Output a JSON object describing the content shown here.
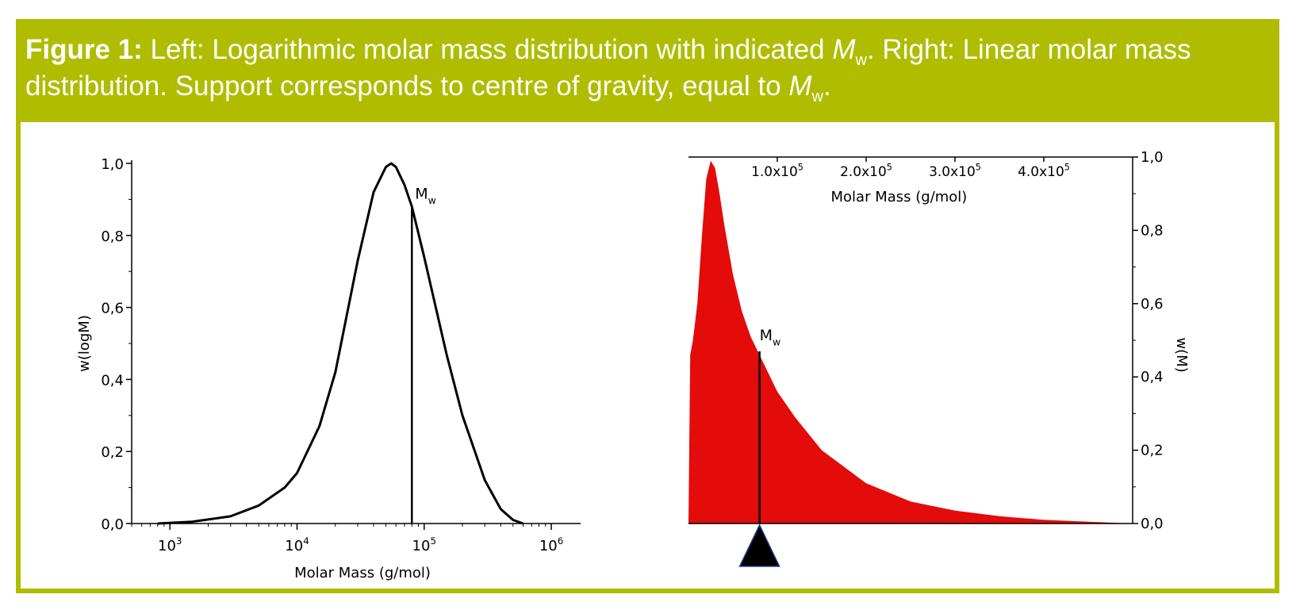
{
  "caption": {
    "label": "Figure 1:",
    "part1": " Left: Logarithmic molar mass distribution with indicated ",
    "mw_symbol": "M",
    "mw_sub": "w",
    "part2": ". Right: Linear molar mass distribution. Support corresponds to centre of gravity, equal to ",
    "end": "."
  },
  "colors": {
    "accent": "#afbc00",
    "fill_red": "#e30c0b",
    "line": "#000000"
  },
  "chart_data": [
    {
      "type": "line",
      "xscale": "log",
      "xlabel": "Molar Mass (g/mol)",
      "ylabel": "w(logM)",
      "xlim": [
        500,
        1700000
      ],
      "ylim": [
        0,
        1.0
      ],
      "xticks": [
        {
          "value": 1000,
          "base": "10",
          "exp": "3"
        },
        {
          "value": 10000,
          "base": "10",
          "exp": "4"
        },
        {
          "value": 100000,
          "base": "10",
          "exp": "5"
        },
        {
          "value": 1000000,
          "base": "10",
          "exp": "6"
        }
      ],
      "yticks": [
        {
          "value": 0.0,
          "label": "0,0"
        },
        {
          "value": 0.2,
          "label": "0,2"
        },
        {
          "value": 0.4,
          "label": "0,4"
        },
        {
          "value": 0.6,
          "label": "0,6"
        },
        {
          "value": 0.8,
          "label": "0,8"
        },
        {
          "value": 1.0,
          "label": "1,0"
        }
      ],
      "series": [
        {
          "x": [
            800,
            1500,
            3000,
            5000,
            8000,
            10000,
            15000,
            20000,
            30000,
            40000,
            50000,
            55000,
            60000,
            70000,
            80000,
            100000,
            150000,
            200000,
            300000,
            400000,
            500000,
            600000
          ],
          "y": [
            0.0,
            0.005,
            0.02,
            0.05,
            0.1,
            0.14,
            0.27,
            0.42,
            0.73,
            0.92,
            0.99,
            1.0,
            0.99,
            0.94,
            0.88,
            0.74,
            0.47,
            0.3,
            0.12,
            0.04,
            0.01,
            0.0
          ]
        }
      ],
      "marker": {
        "label": "M",
        "sub": "w",
        "x": 80000,
        "y": 0.88
      }
    },
    {
      "type": "area",
      "xlabel": "Molar Mass (g/mol)",
      "ylabel": "w(M)",
      "xlim": [
        0,
        500000
      ],
      "ylim": [
        0,
        1.0
      ],
      "xticks": [
        {
          "value": 100000,
          "mant": "1.0x10",
          "exp": "5"
        },
        {
          "value": 200000,
          "mant": "2.0x10",
          "exp": "5"
        },
        {
          "value": 300000,
          "mant": "3.0x10",
          "exp": "5"
        },
        {
          "value": 400000,
          "mant": "4.0x10",
          "exp": "5"
        }
      ],
      "yticks": [
        {
          "value": 0.0,
          "label": "0,0"
        },
        {
          "value": 0.2,
          "label": "0,2"
        },
        {
          "value": 0.4,
          "label": "0,4"
        },
        {
          "value": 0.6,
          "label": "0,6"
        },
        {
          "value": 0.8,
          "label": "0,8"
        },
        {
          "value": 1.0,
          "label": "1,0"
        }
      ],
      "series": [
        {
          "x": [
            0,
            2000,
            5000,
            10000,
            15000,
            20000,
            25000,
            30000,
            35000,
            40000,
            45000,
            50000,
            60000,
            70000,
            80000,
            100000,
            120000,
            150000,
            200000,
            250000,
            300000,
            350000,
            400000,
            450000,
            500000
          ],
          "y": [
            0.0,
            0.46,
            0.5,
            0.6,
            0.78,
            0.94,
            0.99,
            0.97,
            0.9,
            0.82,
            0.75,
            0.68,
            0.58,
            0.51,
            0.46,
            0.36,
            0.29,
            0.2,
            0.11,
            0.06,
            0.035,
            0.02,
            0.01,
            0.005,
            0.0
          ]
        }
      ],
      "marker": {
        "label": "M",
        "sub": "w",
        "x": 80000,
        "y": 0.47
      }
    }
  ]
}
